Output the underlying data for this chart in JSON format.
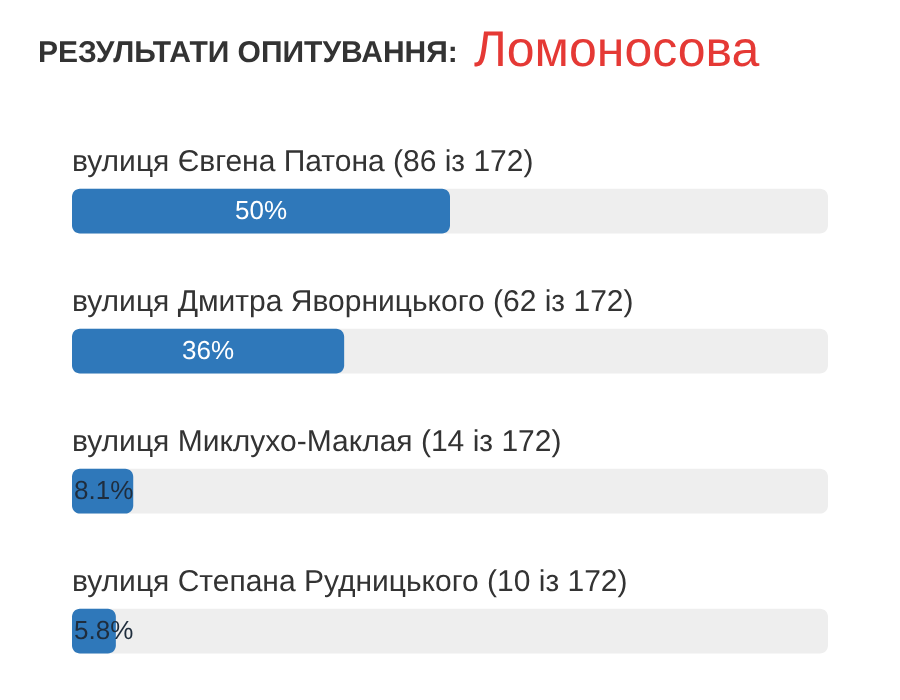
{
  "chart_data": {
    "type": "bar",
    "orientation": "horizontal",
    "title": "РЕЗУЛЬТАТИ ОПИТУВАННЯ:",
    "subtitle": "Ломоносова",
    "categories": [
      "вулиця Євгена Патона (86 із 172)",
      "вулиця Дмитра Яворницького (62 із 172)",
      "вулиця Миклухо-Маклая (14 із 172)",
      "вулиця Степана Рудницького (10 із 172)"
    ],
    "values": [
      50,
      36,
      8.1,
      5.8
    ],
    "value_labels": [
      "50%",
      "36%",
      "8.1%",
      "5.8%"
    ],
    "color": "#2f78ba",
    "xlim": [
      0,
      100
    ]
  }
}
